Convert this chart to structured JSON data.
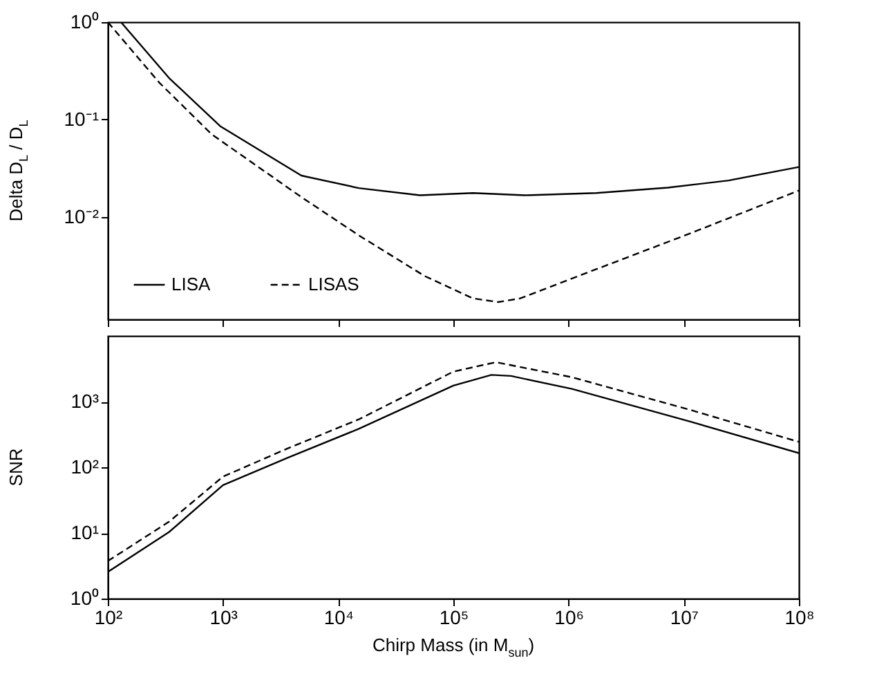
{
  "chart_data": [
    {
      "type": "line",
      "ylabel": "Delta D$_{L}$ / D$_{L}$",
      "log": "xy",
      "grid": false,
      "legend": "bottom left",
      "tick_labels": "y",
      "xlim": [
        100,
        100000000
      ],
      "xticks": [
        100,
        1000,
        10000,
        100000,
        1000000,
        10000000,
        100000000
      ],
      "ylim": [
        0.00089,
        1
      ],
      "yticks": [
        {
          "value": 1,
          "label": "10⁰"
        },
        {
          "value": 0.1,
          "label": "10⁻¹"
        },
        {
          "value": 0.01,
          "label": "10⁻²"
        }
      ],
      "series": [
        {
          "name": "LISA",
          "color": "#000000",
          "line_style": "solid",
          "x": [
            130,
            340,
            955,
            4790,
            15100,
            51300,
            148000,
            417000,
            1740000,
            7240000,
            24500000,
            100000000
          ],
          "values": [
            1.0,
            0.267,
            0.0848,
            0.0266,
            0.0198,
            0.0167,
            0.0176,
            0.0167,
            0.0176,
            0.02,
            0.0237,
            0.0326
          ]
        },
        {
          "name": "LISAS",
          "color": "#000000",
          "line_style": "dashed",
          "x": [
            100,
            279,
            794,
            4790,
            15100,
            56200,
            148000,
            245000,
            380000,
            1740000,
            11500000,
            100000000
          ],
          "values": [
            1.0,
            0.24,
            0.0708,
            0.016,
            0.00648,
            0.00248,
            0.00146,
            0.00134,
            0.00146,
            0.00291,
            0.00682,
            0.0187
          ]
        }
      ]
    },
    {
      "type": "line",
      "xlabel": "Chirp Mass (in M$_{sun}$)",
      "ylabel": "SNR",
      "log": "xy",
      "grid": false,
      "xlim": [
        100,
        100000000
      ],
      "xticks": [
        {
          "value": 100,
          "label": "10²"
        },
        {
          "value": 1000,
          "label": "10³"
        },
        {
          "value": 10000,
          "label": "10⁴"
        },
        {
          "value": 100000,
          "label": "10⁵"
        },
        {
          "value": 1000000,
          "label": "10⁶"
        },
        {
          "value": 10000000,
          "label": "10⁷"
        },
        {
          "value": 100000000,
          "label": "10⁸"
        }
      ],
      "ylim": [
        1,
        10000
      ],
      "yticks": [
        {
          "value": 1,
          "label": "10⁰"
        },
        {
          "value": 10,
          "label": "10¹"
        },
        {
          "value": 100,
          "label": "10²"
        },
        {
          "value": 1000,
          "label": "10³"
        }
      ],
      "series": [
        {
          "color": "#000000",
          "line_style": "solid",
          "x": [
            100,
            340,
            1000,
            3630,
            15100,
            100000,
            214000,
            316000,
            1070000,
            11500000,
            100000000
          ],
          "values": [
            2.55,
            10.3,
            53.5,
            139,
            385,
            1750,
            2550,
            2460,
            1560,
            493,
            164
          ]
        },
        {
          "color": "#000000",
          "line_style": "dashed",
          "x": [
            100,
            340,
            1000,
            3630,
            15100,
            100000,
            234000,
            1070000,
            11500000,
            100000000
          ],
          "values": [
            3.73,
            14.8,
            72,
            193,
            536,
            2860,
            3980,
            2350,
            744,
            243
          ]
        }
      ]
    }
  ]
}
